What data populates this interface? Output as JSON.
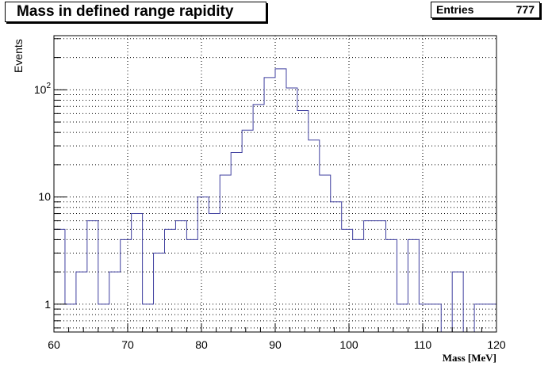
{
  "chart_data": {
    "type": "histogram",
    "title": "Mass in defined range rapidity",
    "xlabel": "Mass [MeV]",
    "ylabel": "Events",
    "xlim": [
      60,
      120
    ],
    "ylim": [
      0.55,
      320
    ],
    "log_y": true,
    "grid": true,
    "line_color": "#3f3f9f",
    "x_ticks": [
      "60",
      "70",
      "80",
      "90",
      "100",
      "110",
      "120"
    ],
    "y_ticks": [
      "1",
      "10",
      "10^2"
    ],
    "stats": {
      "label": "Entries",
      "value": "777"
    },
    "bin_edges": [
      60,
      61.5,
      63,
      64.5,
      66,
      67.5,
      69,
      70.5,
      72,
      73.5,
      75,
      76.5,
      78,
      79.5,
      81,
      82.5,
      84,
      85.5,
      87,
      88.5,
      90,
      91.5,
      93,
      94.5,
      96,
      97.5,
      99,
      100.5,
      102,
      103.5,
      105,
      106.5,
      108,
      109.5,
      111,
      112.5,
      114,
      115.5,
      117,
      118.5,
      120
    ],
    "counts": [
      5,
      1,
      2,
      6,
      1,
      2,
      4,
      7,
      1,
      3,
      5,
      6,
      4,
      10,
      7,
      16,
      26,
      42,
      73,
      130,
      157,
      104,
      64,
      34,
      16,
      9,
      5,
      4,
      6,
      6,
      4,
      1,
      4,
      1,
      1,
      0,
      2,
      0,
      1,
      1
    ]
  }
}
